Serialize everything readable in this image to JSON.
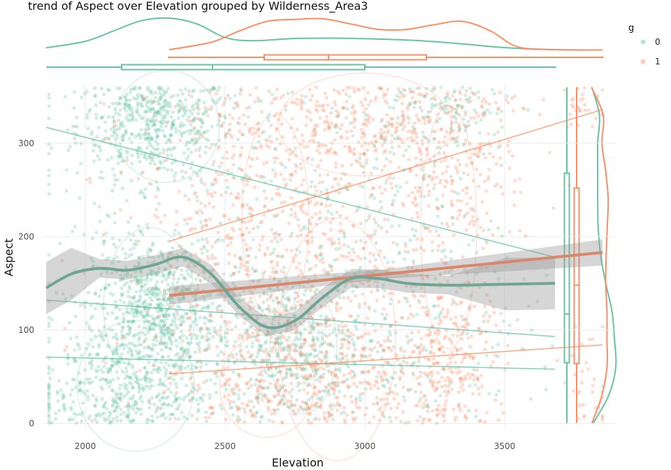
{
  "chart_data": {
    "type": "scatter",
    "title": "trend of Aspect over Elevation grouped by Wilderness_Area3",
    "xlabel": "Elevation",
    "ylabel": "Aspect",
    "xlim": [
      1850,
      3900
    ],
    "ylim": [
      -5,
      362
    ],
    "x_ticks": [
      2000,
      2500,
      3000,
      3500
    ],
    "y_ticks": [
      0,
      100,
      200,
      300
    ],
    "grid": true,
    "legend": {
      "title": "g",
      "position": "right-top",
      "entries": [
        "0",
        "1"
      ]
    },
    "colors": {
      "0": "#66c2a5",
      "1": "#fc8d62",
      "smooth_band": "#999999"
    },
    "series": [
      {
        "name": "0",
        "color": "#66c2a5",
        "clusters": [
          {
            "cx": 2250,
            "cy": 320,
            "sx": 140,
            "sy": 28,
            "n": 520
          },
          {
            "cx": 2250,
            "cy": 125,
            "sx": 110,
            "sy": 35,
            "n": 620
          },
          {
            "cx": 2150,
            "cy": 40,
            "sx": 170,
            "sy": 40,
            "n": 520
          },
          {
            "cx": 2750,
            "cy": 80,
            "sx": 120,
            "sy": 40,
            "n": 380
          },
          {
            "cx": 3050,
            "cy": 150,
            "sx": 250,
            "sy": 110,
            "n": 380
          },
          {
            "cx": 2400,
            "cy": 200,
            "sx": 300,
            "sy": 100,
            "n": 300
          },
          {
            "cx": 3300,
            "cy": 330,
            "sx": 120,
            "sy": 25,
            "n": 120
          }
        ],
        "smooth": {
          "x": [
            1860,
            1950,
            2050,
            2150,
            2250,
            2350,
            2450,
            2550,
            2650,
            2750,
            2850,
            2950,
            3050,
            3150,
            3300,
            3500,
            3680
          ],
          "y": [
            145,
            160,
            166,
            164,
            170,
            178,
            160,
            125,
            103,
            110,
            135,
            155,
            155,
            150,
            148,
            149,
            150
          ]
        },
        "regression_lines": [
          {
            "x": [
              1860,
              3680
            ],
            "y": [
              317,
              178
            ]
          },
          {
            "x": [
              1860,
              3680
            ],
            "y": [
              132,
              93
            ]
          },
          {
            "x": [
              1860,
              3680
            ],
            "y": [
              71,
              58
            ]
          }
        ],
        "box_x": {
          "min": 1865,
          "q1": 2130,
          "median": 2455,
          "q3": 3000,
          "max": 3680
        },
        "box_y": {
          "min": 0,
          "q1": 65,
          "median": 117,
          "q3": 268,
          "max": 360
        },
        "density_x": {
          "x": [
            1860,
            2000,
            2100,
            2200,
            2300,
            2400,
            2500,
            2600,
            2750,
            2900,
            3050,
            3200,
            3350,
            3450,
            3550,
            3700,
            3850
          ],
          "y": [
            0.08,
            0.28,
            0.6,
            0.92,
            1.0,
            0.82,
            0.4,
            0.3,
            0.37,
            0.38,
            0.35,
            0.3,
            0.2,
            0.12,
            0.06,
            0.02,
            0.01
          ]
        },
        "density_y": {
          "y": [
            0,
            30,
            60,
            90,
            120,
            150,
            180,
            210,
            240,
            270,
            300,
            330,
            360
          ],
          "v": [
            0.1,
            0.72,
            1.0,
            0.95,
            0.85,
            0.6,
            0.4,
            0.3,
            0.28,
            0.28,
            0.28,
            0.35,
            0.05
          ]
        }
      },
      {
        "name": "1",
        "color": "#fc8d62",
        "clusters": [
          {
            "cx": 2700,
            "cy": 190,
            "sx": 280,
            "sy": 95,
            "n": 880
          },
          {
            "cx": 2800,
            "cy": 50,
            "sx": 230,
            "sy": 40,
            "n": 440
          },
          {
            "cx": 3300,
            "cy": 70,
            "sx": 100,
            "sy": 45,
            "n": 260
          },
          {
            "cx": 3050,
            "cy": 320,
            "sx": 280,
            "sy": 30,
            "n": 320
          },
          {
            "cx": 3300,
            "cy": 250,
            "sx": 120,
            "sy": 60,
            "n": 220
          },
          {
            "cx": 3800,
            "cy": 30,
            "sx": 50,
            "sy": 25,
            "n": 30
          },
          {
            "cx": 3780,
            "cy": 340,
            "sx": 50,
            "sy": 15,
            "n": 25
          }
        ],
        "regression_lines": [
          {
            "x": [
              2300,
              3850
            ],
            "y": [
              195,
              336
            ]
          },
          {
            "x": [
              2300,
              3850
            ],
            "y": [
              137,
              183
            ]
          },
          {
            "x": [
              2300,
              3850
            ],
            "y": [
              53,
              84
            ]
          }
        ],
        "trend_line": {
          "x": [
            2300,
            3850
          ],
          "y": [
            137,
            183
          ]
        },
        "box_x": {
          "min": 2300,
          "q1": 2640,
          "median": 2870,
          "q3": 3220,
          "max": 3850
        },
        "box_y": {
          "min": 0,
          "q1": 64,
          "median": 148,
          "q3": 252,
          "max": 360
        },
        "density_x": {
          "x": [
            2300,
            2450,
            2550,
            2650,
            2750,
            2850,
            2950,
            3050,
            3150,
            3250,
            3350,
            3450,
            3550,
            3700,
            3850
          ],
          "y": [
            0.02,
            0.25,
            0.6,
            0.9,
            0.96,
            0.98,
            0.82,
            0.65,
            0.65,
            0.8,
            0.9,
            0.6,
            0.1,
            0.02,
            0.01
          ]
        },
        "density_y": {
          "y": [
            0,
            30,
            60,
            90,
            120,
            150,
            180,
            210,
            240,
            270,
            300,
            330,
            360
          ],
          "v": [
            0.05,
            0.45,
            0.65,
            0.65,
            0.65,
            0.6,
            0.62,
            0.66,
            0.7,
            0.6,
            0.45,
            0.5,
            0.03
          ]
        }
      }
    ]
  }
}
